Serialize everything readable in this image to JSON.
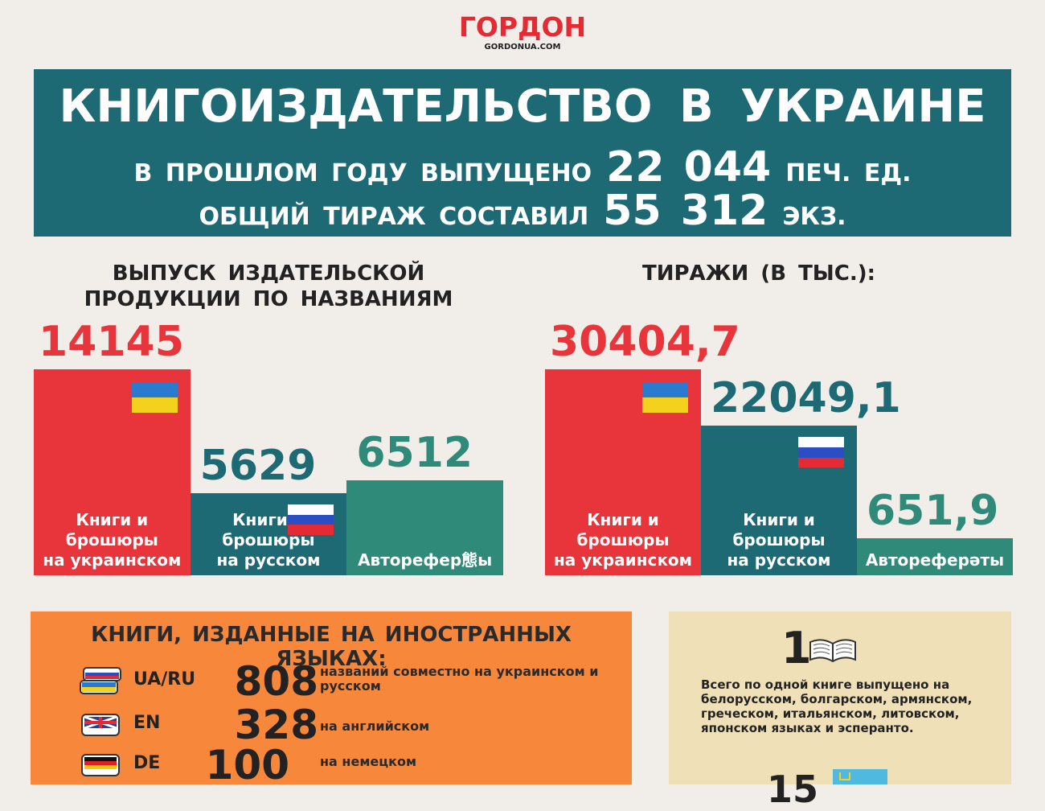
{
  "logo": {
    "title": "ГОРДОН",
    "subtitle": "GORDONUA.COM"
  },
  "banner": {
    "title": "КНИГОИЗДАТЕЛЬСТВО В УКРАИНЕ",
    "line1_pre": "В ПРОШЛОМ ГОДУ ВЫПУЩЕНО",
    "line1_value": "22 044",
    "line1_post": "ПЕЧ. ЕД.",
    "line2_pre": "ОБЩИЙ ТИРАЖ СОСТАВИЛ",
    "line2_value": "55 312",
    "line2_post": "ЭКЗ."
  },
  "colors": {
    "red": "#e8353b",
    "teal_dark": "#1d6a75",
    "teal": "#2f8a7a",
    "orange": "#f7873a",
    "beige": "#efe0b8"
  },
  "chart_data": [
    {
      "type": "bar",
      "title": "ВЫПУСК ИЗДАТЕЛЬСКОЙ\nПРОДУКЦИИ ПО НАЗВАНИЯМ",
      "categories": [
        "Книги и\nброшюры\nна украинском",
        "Книги и\nброшюры\nна русском",
        "Авторефер態ы"
      ],
      "values": [
        14145,
        5629,
        6512
      ],
      "value_labels": [
        "14145",
        "5629",
        "6512"
      ],
      "flags": [
        "ua",
        "ru",
        ""
      ],
      "colors": [
        "#e8353b",
        "#1d6a75",
        "#2f8a7a"
      ],
      "value_colors": [
        "#e8353b",
        "#1d6a75",
        "#2f8a7a"
      ]
    },
    {
      "type": "bar",
      "title": "ТИРАЖИ (В ТЫС.):",
      "categories": [
        "Книги и\nброшюры\nна украинском",
        "Книги и\nброшюры\nна русском",
        "Автореферәты"
      ],
      "values": [
        30404.7,
        22049.1,
        651.9
      ],
      "value_labels": [
        "30404,7",
        "22049,1",
        "651,9"
      ],
      "flags": [
        "ua",
        "ru",
        ""
      ],
      "colors": [
        "#e8353b",
        "#1d6a75",
        "#2f8a7a"
      ],
      "value_colors": [
        "#e8353b",
        "#1d6a75",
        "#2f8a7a"
      ]
    }
  ],
  "foreign": {
    "title": "КНИГИ, ИЗДАННЫЕ НА ИНОСТРАННЫХ ЯЗЫКАХ:",
    "rows": [
      {
        "code": "UA/RU",
        "value": "808",
        "desc": "названий совместно на украинском и русском",
        "icon": "ua-ru-book-icon"
      },
      {
        "code": "EN",
        "value": "328",
        "desc": "на английском",
        "icon": "uk-book-icon"
      },
      {
        "code": "DE",
        "value": "100",
        "desc": "на немецком",
        "icon": "de-book-icon"
      }
    ]
  },
  "onebook": {
    "number": "1",
    "text": "Всего по одной книге выпущено на белорусском, болгарском, армянском, греческом, итальянском, литовском, японском языках и эсперанто.",
    "next_number": "15"
  }
}
